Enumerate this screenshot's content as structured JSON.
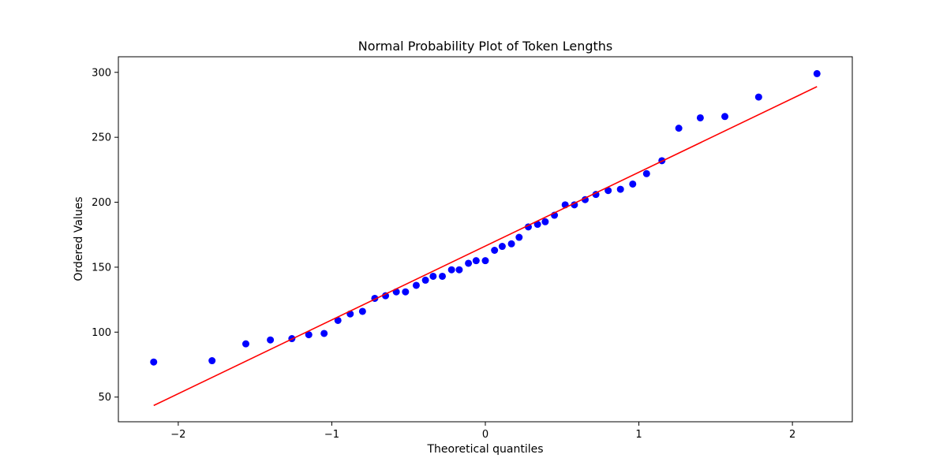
{
  "chart_data": {
    "type": "scatter",
    "title": "Normal Probability Plot of Token Lengths",
    "xlabel": "Theoretical quantiles",
    "ylabel": "Ordered Values",
    "xlim": [
      -2.39,
      2.39
    ],
    "ylim": [
      31,
      312
    ],
    "xticks": [
      {
        "value": -2,
        "label": "−2"
      },
      {
        "value": -1,
        "label": "−1"
      },
      {
        "value": 0,
        "label": "0"
      },
      {
        "value": 1,
        "label": "1"
      },
      {
        "value": 2,
        "label": "2"
      }
    ],
    "yticks": [
      {
        "value": 50,
        "label": "50"
      },
      {
        "value": 100,
        "label": "100"
      },
      {
        "value": 150,
        "label": "150"
      },
      {
        "value": 200,
        "label": "200"
      },
      {
        "value": 250,
        "label": "250"
      },
      {
        "value": 300,
        "label": "300"
      }
    ],
    "grid": false,
    "series": [
      {
        "kind": "points",
        "color": "#0000ff",
        "x": [
          -2.16,
          -1.78,
          -1.56,
          -1.4,
          -1.26,
          -1.15,
          -1.05,
          -0.96,
          -0.88,
          -0.8,
          -0.72,
          -0.65,
          -0.58,
          -0.52,
          -0.45,
          -0.39,
          -0.34,
          -0.28,
          -0.22,
          -0.17,
          -0.11,
          -0.06,
          0.0,
          0.06,
          0.11,
          0.17,
          0.22,
          0.28,
          0.34,
          0.39,
          0.45,
          0.52,
          0.58,
          0.65,
          0.72,
          0.8,
          0.88,
          0.96,
          1.05,
          1.15,
          1.26,
          1.4,
          1.56,
          1.78,
          2.16
        ],
        "y": [
          77,
          78,
          91,
          94,
          95,
          98,
          99,
          109,
          114,
          116,
          126,
          128,
          131,
          131,
          136,
          140,
          143,
          143,
          148,
          148,
          153,
          155,
          155,
          163,
          166,
          168,
          173,
          181,
          183,
          185,
          190,
          198,
          198,
          202,
          206,
          209,
          210,
          214,
          222,
          232,
          257,
          265,
          266,
          281,
          299
        ]
      },
      {
        "kind": "line",
        "color": "#ff0000",
        "x": [
          -2.16,
          2.16
        ],
        "y": [
          43.5,
          289
        ]
      }
    ]
  }
}
